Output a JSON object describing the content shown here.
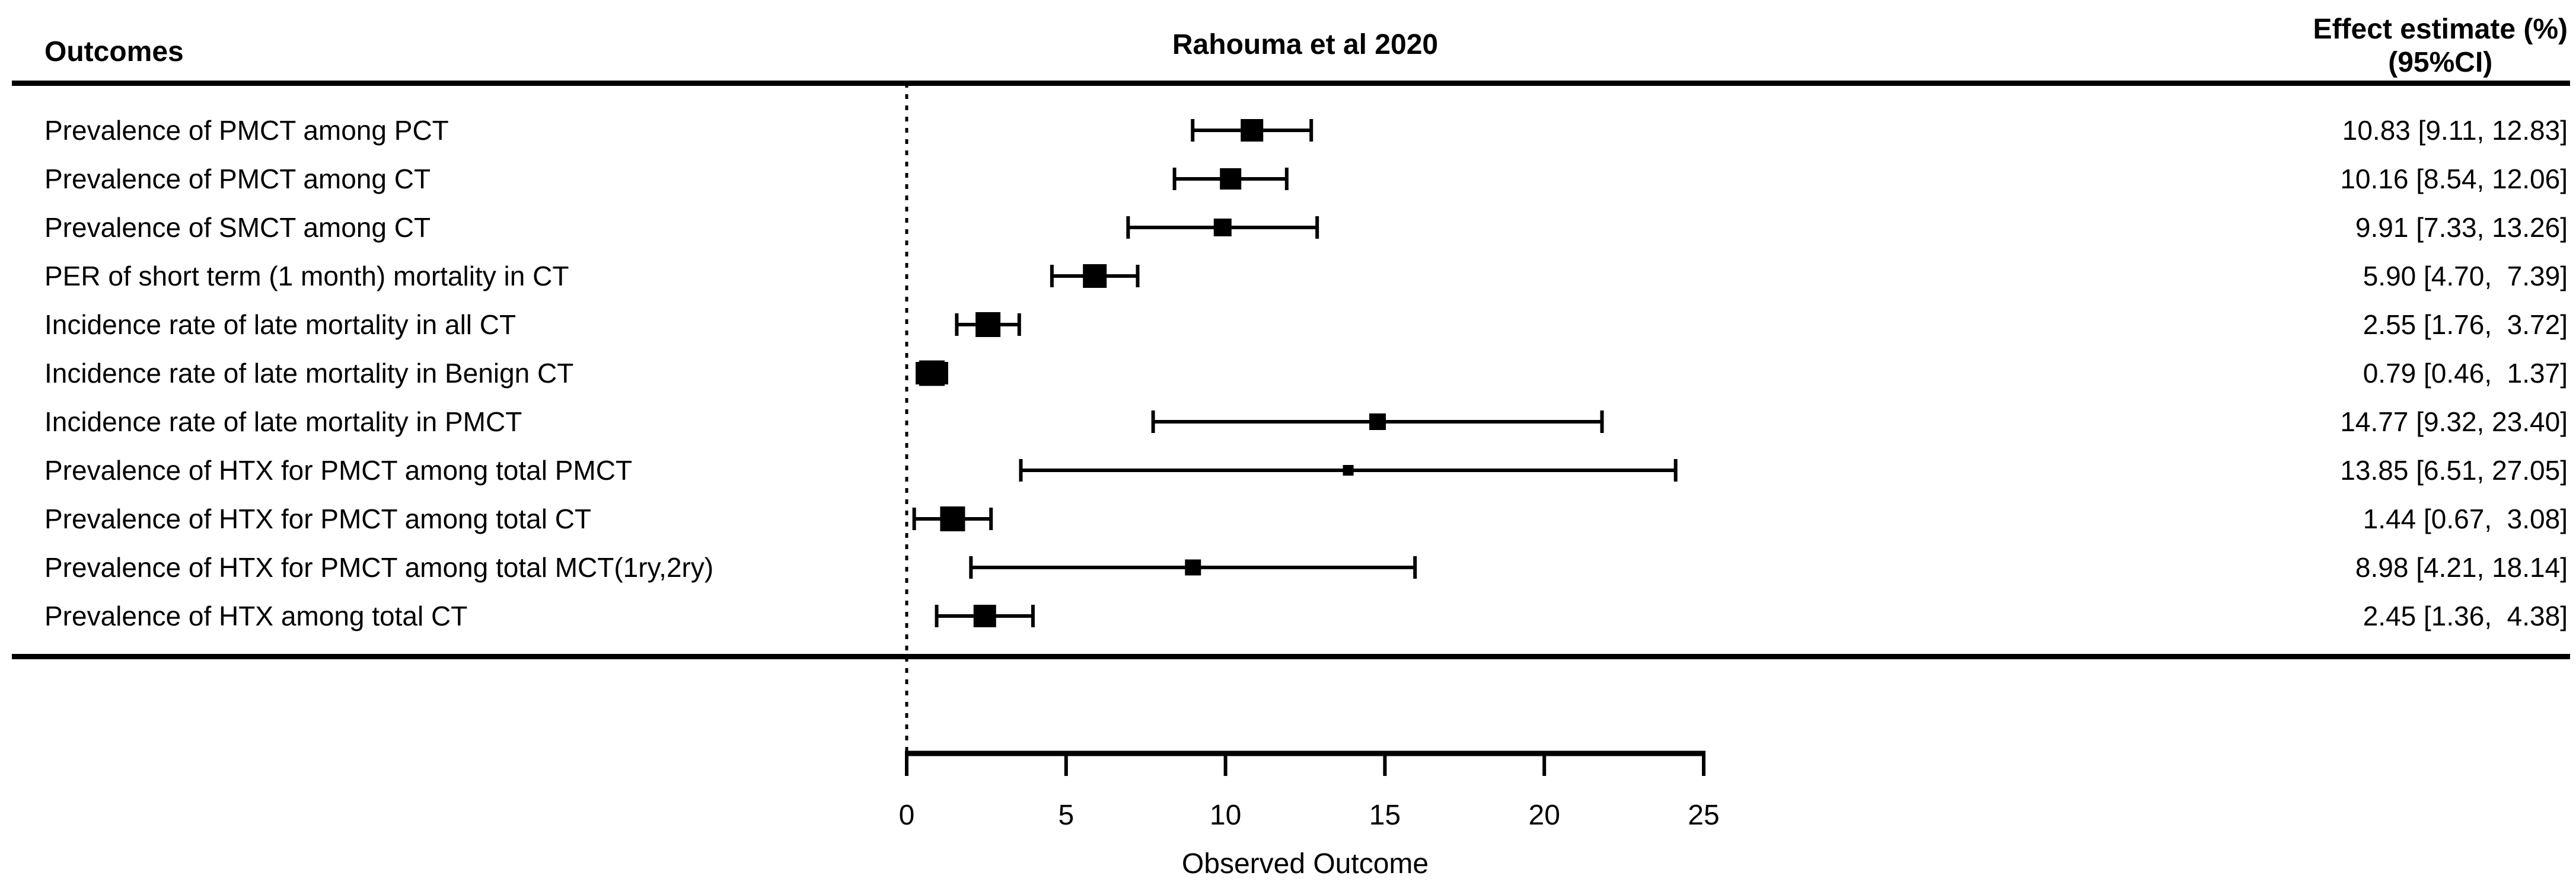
{
  "header": {
    "outcomes_label": "Outcomes",
    "study_label": "Rahouma et al 2020",
    "effect_label_line1": "Effect estimate (%)",
    "effect_label_line2": "(95%CI)"
  },
  "chart_data": {
    "type": "forest",
    "title": "Rahouma et al 2020",
    "xlabel": "Observed Outcome",
    "xlim": [
      0,
      25
    ],
    "x_ticks": [
      0,
      5,
      10,
      15,
      20,
      25
    ],
    "reference_line_x": 0,
    "grid": false,
    "colors": {
      "foreground": "#000000",
      "background": "#ffffff"
    },
    "rows": [
      {
        "label": "Prevalence of PMCT among PCT",
        "estimate": 10.83,
        "ci_low": 9.11,
        "ci_high": 12.83,
        "effect_text": "10.83 [9.11, 12.83]",
        "marker_size": 38
      },
      {
        "label": "Prevalence of PMCT among CT",
        "estimate": 10.16,
        "ci_low": 8.54,
        "ci_high": 12.06,
        "effect_text": "10.16 [8.54, 12.06]",
        "marker_size": 36
      },
      {
        "label": "Prevalence of SMCT among CT",
        "estimate": 9.91,
        "ci_low": 7.33,
        "ci_high": 13.26,
        "effect_text": "9.91 [7.33, 13.26]",
        "marker_size": 30
      },
      {
        "label": "PER of short term (1 month) mortality in CT",
        "estimate": 5.9,
        "ci_low": 4.7,
        "ci_high": 7.39,
        "effect_text": "5.90 [4.70,  7.39]",
        "marker_size": 40
      },
      {
        "label": "Incidence rate of late mortality in all CT",
        "estimate": 2.55,
        "ci_low": 1.76,
        "ci_high": 3.72,
        "effect_text": "2.55 [1.76,  3.72]",
        "marker_size": 42
      },
      {
        "label": "Incidence rate of late mortality in Benign CT",
        "estimate": 0.79,
        "ci_low": 0.46,
        "ci_high": 1.37,
        "effect_text": "0.79 [0.46,  1.37]",
        "marker_size": 43
      },
      {
        "label": "Incidence rate of late mortality in PMCT",
        "estimate": 14.77,
        "ci_low": 9.32,
        "ci_high": 23.4,
        "effect_text": "14.77 [9.32, 23.40]",
        "marker_size": 28
      },
      {
        "label": "Prevalence of HTX for PMCT among total PMCT",
        "estimate": 13.85,
        "ci_low": 6.51,
        "ci_high": 27.05,
        "effect_text": "13.85 [6.51, 27.05]",
        "marker_size": 18
      },
      {
        "label": "Prevalence of HTX for PMCT among total CT",
        "estimate": 1.44,
        "ci_low": 0.67,
        "ci_high": 3.08,
        "effect_text": "1.44 [0.67,  3.08]",
        "marker_size": 42
      },
      {
        "label": "Prevalence of HTX for PMCT among total MCT(1ry,2ry)",
        "estimate": 8.98,
        "ci_low": 4.21,
        "ci_high": 18.14,
        "effect_text": "8.98 [4.21, 18.14]",
        "marker_size": 27
      },
      {
        "label": "Prevalence of HTX among total CT",
        "estimate": 2.45,
        "ci_low": 1.36,
        "ci_high": 4.38,
        "effect_text": "2.45 [1.36,  4.38]",
        "marker_size": 38
      }
    ]
  }
}
